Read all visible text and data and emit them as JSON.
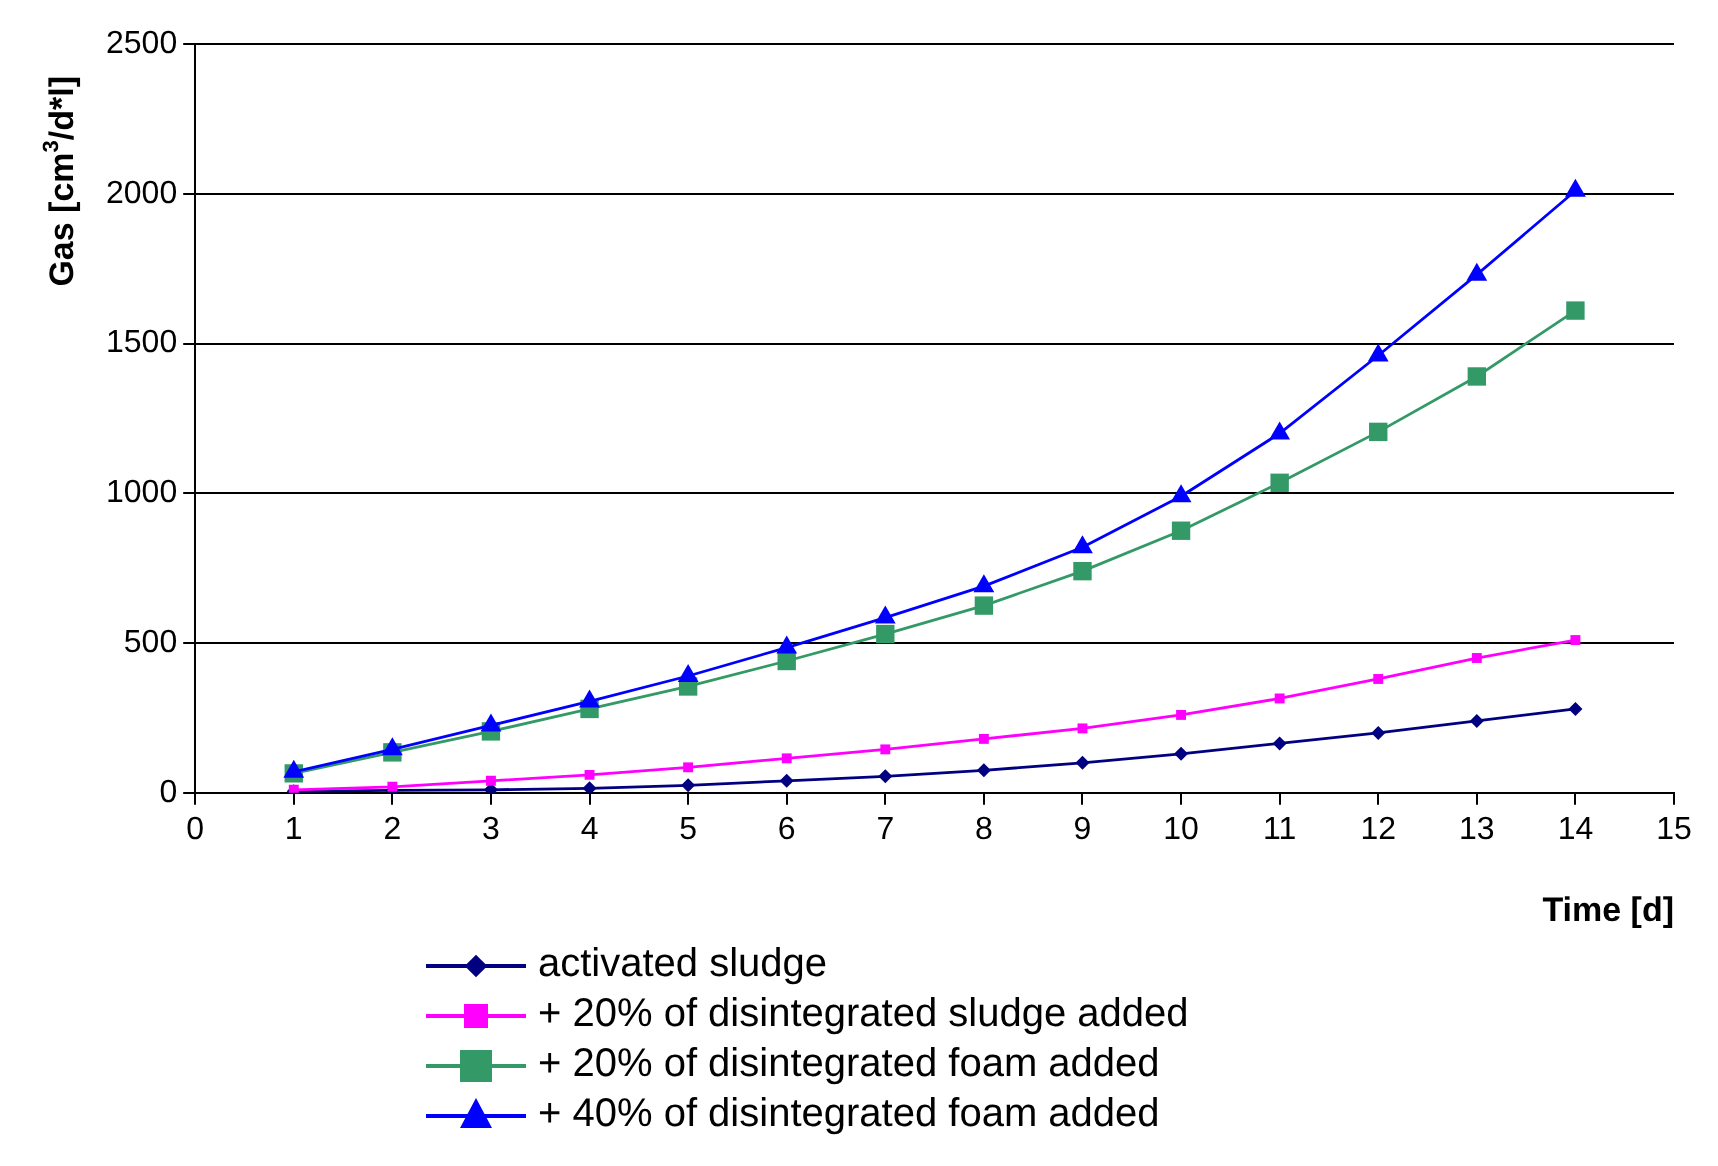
{
  "chart_data": {
    "type": "line",
    "xlabel": "Time [d]",
    "ylabel": "Gas [cm$^{3}$/d*l]",
    "x": [
      1,
      2,
      3,
      4,
      5,
      6,
      7,
      8,
      9,
      10,
      11,
      12,
      13,
      14
    ],
    "xlim": [
      0,
      15
    ],
    "xticks": [
      0,
      1,
      2,
      3,
      4,
      5,
      6,
      7,
      8,
      9,
      10,
      11,
      12,
      13,
      14,
      15
    ],
    "ylim": [
      0,
      2500
    ],
    "yticks": [
      0,
      500,
      1000,
      1500,
      2000,
      2500
    ],
    "grid": "y",
    "legend": "bottom",
    "line_style": "solid",
    "series": [
      {
        "name": "activated sludge",
        "color": "#000080",
        "marker": "diamond",
        "values": [
          5,
          8,
          10,
          15,
          25,
          40,
          55,
          75,
          100,
          130,
          165,
          200,
          240,
          280
        ]
      },
      {
        "name": "+ 20% of disintegrated sludge added",
        "color": "#ff00ff",
        "marker": "square",
        "values": [
          10,
          20,
          40,
          60,
          85,
          115,
          145,
          180,
          215,
          260,
          315,
          380,
          450,
          510
        ]
      },
      {
        "name": "+ 20% of disintegrated foam added",
        "color": "#339966",
        "marker": "square",
        "values": [
          65,
          135,
          205,
          280,
          355,
          440,
          530,
          625,
          740,
          875,
          1035,
          1205,
          1390,
          1610
        ]
      },
      {
        "name": "+ 40% of disintegrated foam added",
        "color": "#0000ff",
        "marker": "triangle",
        "values": [
          70,
          145,
          225,
          305,
          390,
          485,
          585,
          690,
          820,
          990,
          1200,
          1460,
          1730,
          2010
        ]
      }
    ]
  }
}
